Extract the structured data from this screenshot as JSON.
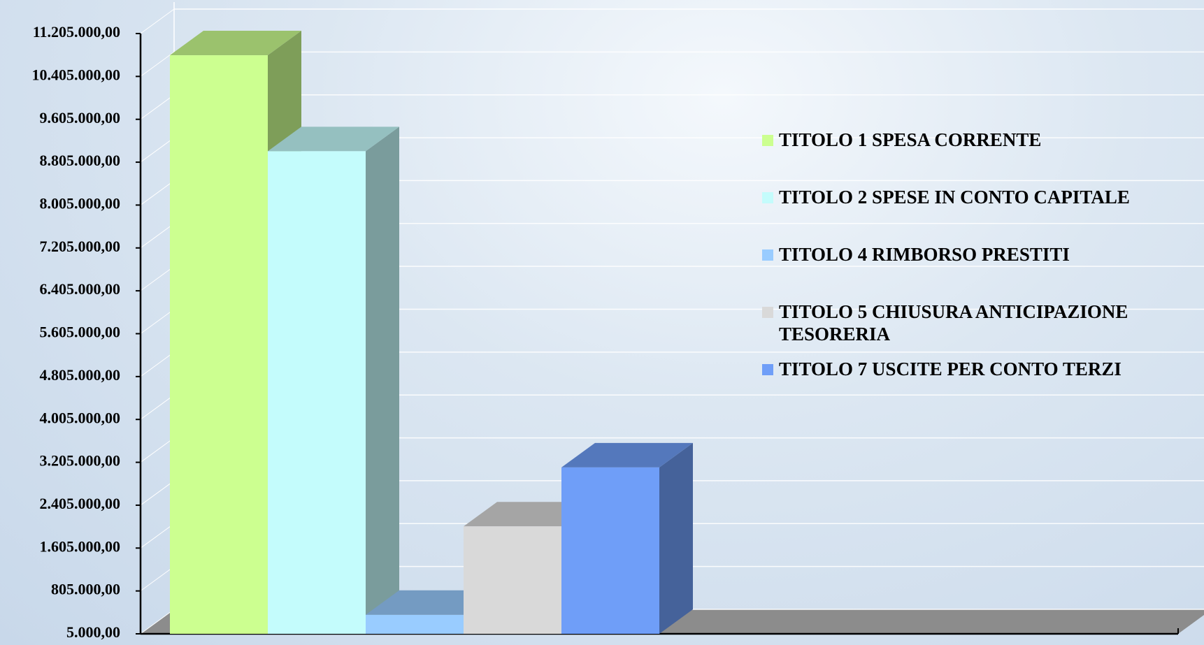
{
  "chart_data": {
    "type": "bar3d",
    "categories": [
      null
    ],
    "series": [
      {
        "name": "TITOLO 1 SPESA CORRENTE",
        "color": "#ccff90",
        "values": [
          10800000
        ]
      },
      {
        "name": "TITOLO 2 SPESE IN CONTO CAPITALE",
        "color": "#c4fcfc",
        "values": [
          9010000
        ]
      },
      {
        "name": "TITOLO 4 RIMBORSO PRESTITI",
        "color": "#99ccff",
        "values": [
          360000
        ]
      },
      {
        "name": "TITOLO 5 CHIUSURA ANTICIPAZIONE TESORERIA",
        "color": "#d9d9d9",
        "values": [
          2010000
        ]
      },
      {
        "name": "TITOLO 7 USCITE PER CONTO TERZI",
        "color": "#6f9ef8",
        "values": [
          3110000
        ]
      }
    ],
    "ylim": [
      5000,
      11205000
    ],
    "yticks": [
      {
        "value": 5000,
        "label": "5.000,00"
      },
      {
        "value": 805000,
        "label": "805.000,00"
      },
      {
        "value": 1605000,
        "label": "1.605.000,00"
      },
      {
        "value": 2405000,
        "label": "2.405.000,00"
      },
      {
        "value": 3205000,
        "label": "3.205.000,00"
      },
      {
        "value": 4005000,
        "label": "4.005.000,00"
      },
      {
        "value": 4805000,
        "label": "4.805.000,00"
      },
      {
        "value": 5605000,
        "label": "5.605.000,00"
      },
      {
        "value": 6405000,
        "label": "6.405.000,00"
      },
      {
        "value": 7205000,
        "label": "7.205.000,00"
      },
      {
        "value": 8005000,
        "label": "8.005.000,00"
      },
      {
        "value": 8805000,
        "label": "8.805.000,00"
      },
      {
        "value": 9605000,
        "label": "9.605.000,00"
      },
      {
        "value": 10405000,
        "label": "10.405.000,00"
      },
      {
        "value": 11205000,
        "label": "11.205.000,00"
      }
    ],
    "grid": true,
    "legend": "right"
  }
}
